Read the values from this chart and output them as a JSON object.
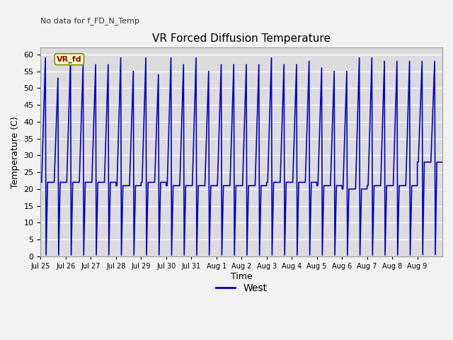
{
  "title": "VR Forced Diffusion Temperature",
  "xlabel": "Time",
  "ylabel": "Temperature (C)",
  "ylim": [
    0,
    62
  ],
  "yticks": [
    0,
    5,
    10,
    15,
    20,
    25,
    30,
    35,
    40,
    45,
    50,
    55,
    60
  ],
  "background_color": "#dcdcdc",
  "line_color": "#0000cc",
  "legend_label": "West",
  "annotation_text": "No data for f_FD_N_Temp",
  "vr_fd_label": "VR_fd",
  "x_tick_labels": [
    "Jul 25",
    "Jul 26",
    "Jul 27",
    "Jul 28",
    "Jul 29",
    "Jul 30",
    "Jul 31",
    "Aug 1",
    "Aug 2",
    "Aug 3",
    "Aug 4",
    "Aug 5",
    "Aug 6",
    "Aug 7",
    "Aug 8",
    "Aug 9"
  ],
  "num_days": 16,
  "fig_bg": "#f2f2f2"
}
